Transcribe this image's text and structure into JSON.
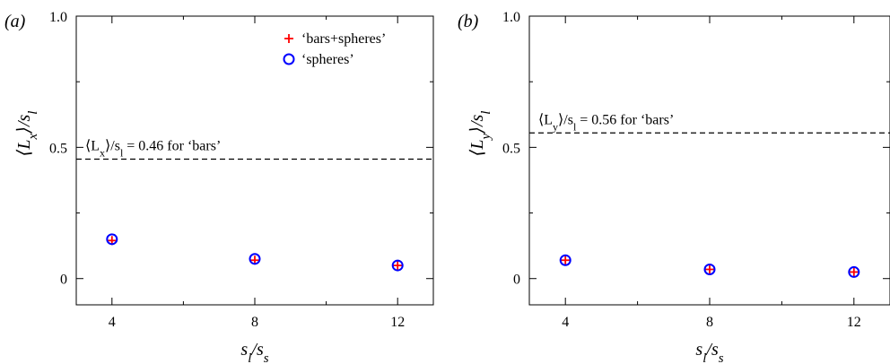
{
  "chart_data": [
    {
      "type": "scatter",
      "panel_label": "(a)",
      "x_ticks": [
        4,
        8,
        12
      ],
      "x_tick_labels": [
        "4",
        "8",
        "12"
      ],
      "y_ticks": [
        0,
        0.5,
        1.0
      ],
      "y_tick_labels": [
        "0",
        "0.5",
        "1.0"
      ],
      "xlim": [
        3,
        13
      ],
      "ylim": [
        -0.1,
        1.0
      ],
      "xlabel": "s_l/s_s",
      "ylabel": "⟨L_x⟩/s_l",
      "reference_line": {
        "y": 0.455,
        "label": "⟨L_x⟩/s_l = 0.46 for ‘bars’"
      },
      "series": [
        {
          "name": "‘bars+spheres’",
          "marker": "plus",
          "color": "#ff0000",
          "x": [
            4,
            8,
            12
          ],
          "y": [
            0.145,
            0.07,
            0.05
          ]
        },
        {
          "name": "‘spheres’",
          "marker": "circle",
          "color": "#0000ff",
          "x": [
            4,
            8,
            12
          ],
          "y": [
            0.15,
            0.075,
            0.05
          ]
        }
      ],
      "legend": "top-right",
      "grid": false
    },
    {
      "type": "scatter",
      "panel_label": "(b)",
      "x_ticks": [
        4,
        8,
        12
      ],
      "x_tick_labels": [
        "4",
        "8",
        "12"
      ],
      "y_ticks": [
        0,
        0.5,
        1.0
      ],
      "y_tick_labels": [
        "0",
        "0.5",
        "1.0"
      ],
      "xlim": [
        3,
        13
      ],
      "ylim": [
        -0.1,
        1.0
      ],
      "xlabel": "s_l/s_s",
      "ylabel": "⟨L_y⟩/s_l",
      "reference_line": {
        "y": 0.555,
        "label": "⟨L_y⟩/s_l = 0.56 for ‘bars’"
      },
      "series": [
        {
          "name": "‘bars+spheres’",
          "marker": "plus",
          "color": "#ff0000",
          "x": [
            4,
            8,
            12
          ],
          "y": [
            0.07,
            0.035,
            0.025
          ]
        },
        {
          "name": "‘spheres’",
          "marker": "circle",
          "color": "#0000ff",
          "x": [
            4,
            8,
            12
          ],
          "y": [
            0.07,
            0.035,
            0.025
          ]
        }
      ],
      "grid": false
    }
  ]
}
